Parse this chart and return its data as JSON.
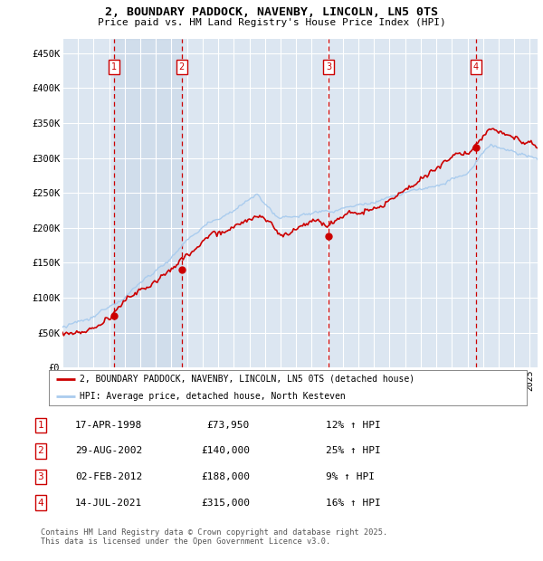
{
  "title": "2, BOUNDARY PADDOCK, NAVENBY, LINCOLN, LN5 0TS",
  "subtitle": "Price paid vs. HM Land Registry's House Price Index (HPI)",
  "background_color": "#ffffff",
  "plot_bg_color": "#dce6f1",
  "grid_color": "#ffffff",
  "red_line_color": "#cc0000",
  "blue_line_color": "#aaccee",
  "shade_color": "#c8d8e8",
  "ylim": [
    0,
    470000
  ],
  "yticks": [
    0,
    50000,
    100000,
    150000,
    200000,
    250000,
    300000,
    350000,
    400000,
    450000
  ],
  "ytick_labels": [
    "£0",
    "£50K",
    "£100K",
    "£150K",
    "£200K",
    "£250K",
    "£300K",
    "£350K",
    "£400K",
    "£450K"
  ],
  "legend_line1": "2, BOUNDARY PADDOCK, NAVENBY, LINCOLN, LN5 0TS (detached house)",
  "legend_line2": "HPI: Average price, detached house, North Kesteven",
  "transactions": [
    {
      "num": 1,
      "date": "17-APR-1998",
      "price": "£73,950",
      "pct": "12% ↑ HPI",
      "x_year": 1998.29
    },
    {
      "num": 2,
      "date": "29-AUG-2002",
      "price": "£140,000",
      "pct": "25% ↑ HPI",
      "x_year": 2002.66
    },
    {
      "num": 3,
      "date": "02-FEB-2012",
      "price": "£188,000",
      "pct": "9% ↑ HPI",
      "x_year": 2012.09
    },
    {
      "num": 4,
      "date": "14-JUL-2021",
      "price": "£315,000",
      "pct": "16% ↑ HPI",
      "x_year": 2021.54
    }
  ],
  "footer": "Contains HM Land Registry data © Crown copyright and database right 2025.\nThis data is licensed under the Open Government Licence v3.0.",
  "xmin": 1995.0,
  "xmax": 2025.5,
  "sale_prices": [
    73950,
    140000,
    188000,
    315000
  ]
}
